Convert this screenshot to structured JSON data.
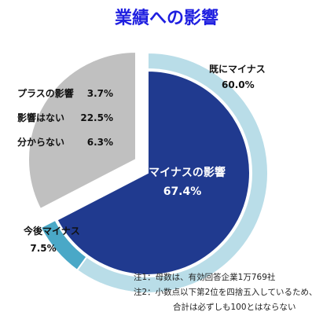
{
  "chart_data": {
    "type": "pie",
    "title": "業績への影響",
    "colors": {
      "title": "#1f1fe0",
      "minus_impact": "#203a8f",
      "already_minus": "#b9dde8",
      "future_minus": "#4aa8c7",
      "no_minus_group": "#c0c0c0",
      "slice_border": "#ffffff"
    },
    "outer_segments": [
      {
        "key": "already_minus",
        "label": "既にマイナス",
        "value": 60.0,
        "value_label": "60.0%"
      },
      {
        "key": "future_minus",
        "label": "今後マイナス",
        "value": 7.5,
        "value_label": "7.5%"
      }
    ],
    "main_slices": [
      {
        "key": "minus_impact",
        "label": "マイナスの影響",
        "value": 67.4,
        "value_label": "67.4%"
      },
      {
        "key": "no_minus_group",
        "label": "",
        "value": 32.6,
        "value_label": ""
      }
    ],
    "breakdown": [
      {
        "label": "プラスの影響",
        "value": 3.7,
        "value_label": "3.7%"
      },
      {
        "label": "影響はない",
        "value": 22.5,
        "value_label": "22.5%"
      },
      {
        "label": "分からない",
        "value": 6.3,
        "value_label": "6.3%"
      }
    ],
    "notes": [
      "注1：母数は、有効回答企業1万769社",
      "注2：小数点以下第2位を四捨五入しているため、",
      "合計は必ずしも100とはならない"
    ]
  }
}
